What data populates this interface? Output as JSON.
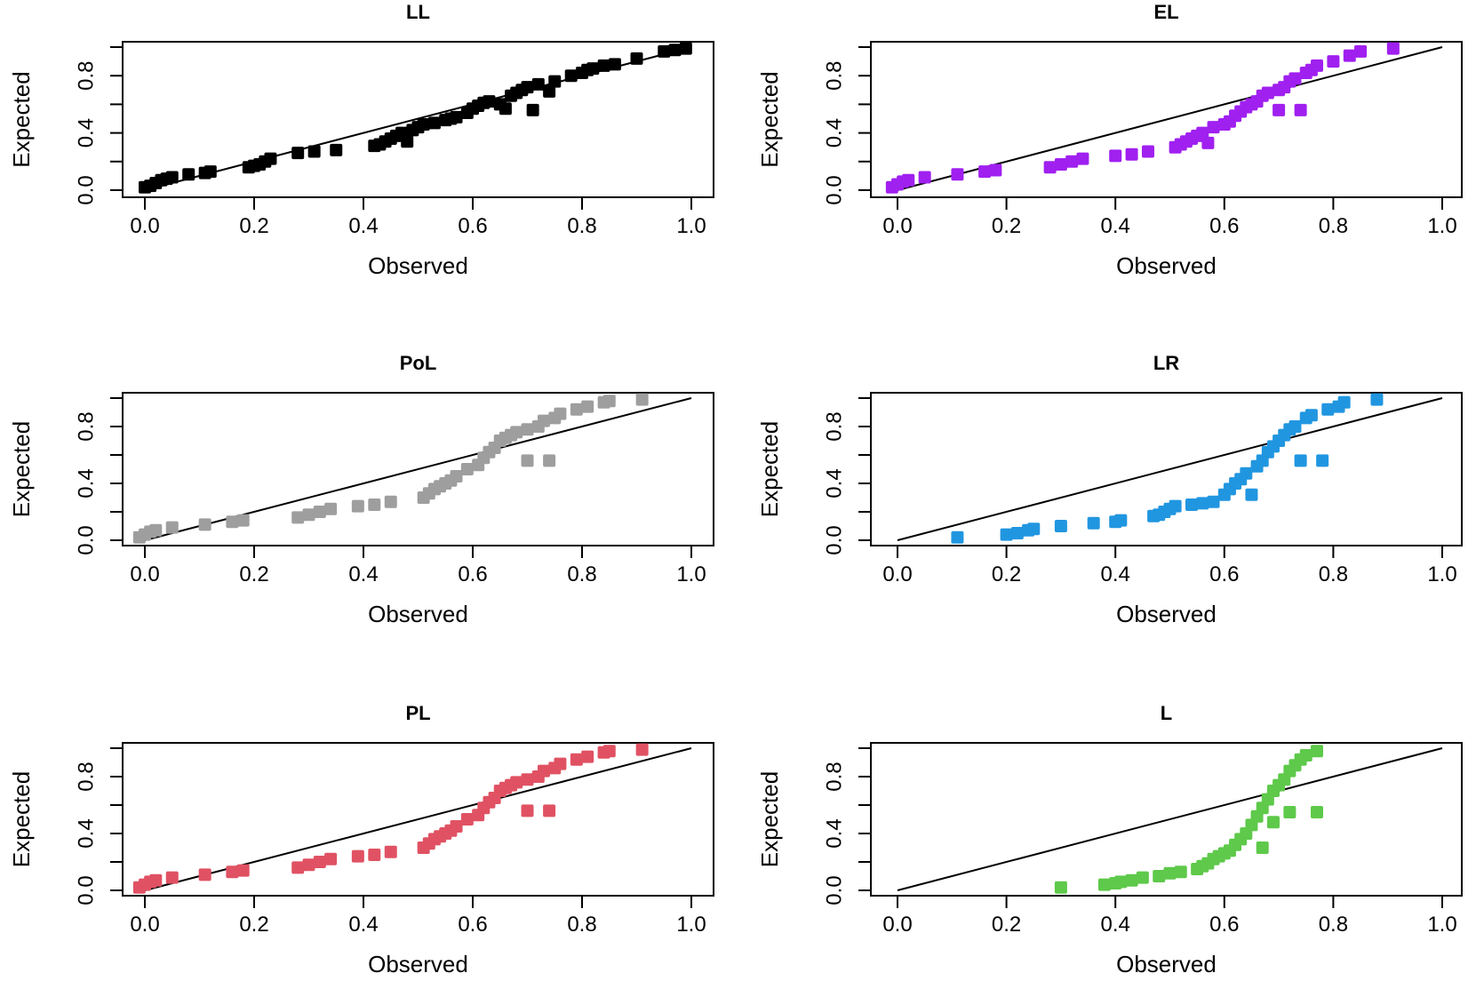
{
  "chart_data": [
    {
      "type": "scatter",
      "title": "LL",
      "xlabel": "Observed",
      "ylabel": "Expected",
      "xlim": [
        0,
        1
      ],
      "ylim": [
        0,
        1
      ],
      "xticks": [
        "0.0",
        "0.2",
        "0.4",
        "0.6",
        "0.8",
        "1.0"
      ],
      "yticks": [
        "0.0",
        "0.4",
        "0.8"
      ],
      "color": "#000000",
      "reference_line": [
        [
          0,
          0
        ],
        [
          1,
          1
        ]
      ],
      "points": [
        [
          0.0,
          0.02
        ],
        [
          0.01,
          0.03
        ],
        [
          0.02,
          0.05
        ],
        [
          0.03,
          0.07
        ],
        [
          0.04,
          0.08
        ],
        [
          0.05,
          0.09
        ],
        [
          0.08,
          0.11
        ],
        [
          0.11,
          0.12
        ],
        [
          0.12,
          0.13
        ],
        [
          0.19,
          0.16
        ],
        [
          0.2,
          0.17
        ],
        [
          0.21,
          0.18
        ],
        [
          0.22,
          0.2
        ],
        [
          0.23,
          0.22
        ],
        [
          0.28,
          0.26
        ],
        [
          0.31,
          0.27
        ],
        [
          0.35,
          0.28
        ],
        [
          0.42,
          0.31
        ],
        [
          0.43,
          0.32
        ],
        [
          0.44,
          0.34
        ],
        [
          0.45,
          0.36
        ],
        [
          0.46,
          0.38
        ],
        [
          0.47,
          0.4
        ],
        [
          0.48,
          0.34
        ],
        [
          0.49,
          0.42
        ],
        [
          0.5,
          0.44
        ],
        [
          0.51,
          0.46
        ],
        [
          0.53,
          0.47
        ],
        [
          0.55,
          0.49
        ],
        [
          0.56,
          0.5
        ],
        [
          0.57,
          0.51
        ],
        [
          0.59,
          0.54
        ],
        [
          0.6,
          0.57
        ],
        [
          0.61,
          0.59
        ],
        [
          0.62,
          0.61
        ],
        [
          0.63,
          0.62
        ],
        [
          0.65,
          0.6
        ],
        [
          0.66,
          0.57
        ],
        [
          0.67,
          0.66
        ],
        [
          0.68,
          0.68
        ],
        [
          0.69,
          0.7
        ],
        [
          0.7,
          0.72
        ],
        [
          0.71,
          0.56
        ],
        [
          0.72,
          0.74
        ],
        [
          0.74,
          0.69
        ],
        [
          0.75,
          0.76
        ],
        [
          0.78,
          0.8
        ],
        [
          0.8,
          0.82
        ],
        [
          0.81,
          0.84
        ],
        [
          0.82,
          0.85
        ],
        [
          0.84,
          0.87
        ],
        [
          0.86,
          0.88
        ],
        [
          0.9,
          0.92
        ],
        [
          0.95,
          0.97
        ],
        [
          0.97,
          0.98
        ],
        [
          0.99,
          0.99
        ]
      ]
    },
    {
      "type": "scatter",
      "title": "EL",
      "xlabel": "Observed",
      "ylabel": "Expected",
      "xlim": [
        0,
        1
      ],
      "ylim": [
        0,
        1
      ],
      "xticks": [
        "0.0",
        "0.2",
        "0.4",
        "0.6",
        "0.8",
        "1.0"
      ],
      "yticks": [
        "0.0",
        "0.4",
        "0.8"
      ],
      "color": "#a020f0",
      "reference_line": [
        [
          0,
          0
        ],
        [
          1,
          1
        ]
      ],
      "points": [
        [
          -0.01,
          0.02
        ],
        [
          0.0,
          0.04
        ],
        [
          0.01,
          0.06
        ],
        [
          0.02,
          0.07
        ],
        [
          0.05,
          0.09
        ],
        [
          0.11,
          0.11
        ],
        [
          0.16,
          0.13
        ],
        [
          0.18,
          0.14
        ],
        [
          0.28,
          0.16
        ],
        [
          0.3,
          0.18
        ],
        [
          0.32,
          0.2
        ],
        [
          0.34,
          0.22
        ],
        [
          0.4,
          0.24
        ],
        [
          0.43,
          0.25
        ],
        [
          0.46,
          0.27
        ],
        [
          0.51,
          0.3
        ],
        [
          0.52,
          0.32
        ],
        [
          0.53,
          0.34
        ],
        [
          0.54,
          0.36
        ],
        [
          0.55,
          0.38
        ],
        [
          0.56,
          0.4
        ],
        [
          0.57,
          0.33
        ],
        [
          0.58,
          0.44
        ],
        [
          0.6,
          0.46
        ],
        [
          0.61,
          0.48
        ],
        [
          0.62,
          0.52
        ],
        [
          0.63,
          0.55
        ],
        [
          0.64,
          0.58
        ],
        [
          0.65,
          0.6
        ],
        [
          0.66,
          0.62
        ],
        [
          0.67,
          0.66
        ],
        [
          0.68,
          0.68
        ],
        [
          0.7,
          0.56
        ],
        [
          0.7,
          0.7
        ],
        [
          0.71,
          0.72
        ],
        [
          0.72,
          0.76
        ],
        [
          0.73,
          0.78
        ],
        [
          0.74,
          0.56
        ],
        [
          0.75,
          0.82
        ],
        [
          0.76,
          0.84
        ],
        [
          0.77,
          0.87
        ],
        [
          0.8,
          0.9
        ],
        [
          0.83,
          0.94
        ],
        [
          0.85,
          0.97
        ],
        [
          0.91,
          0.99
        ]
      ]
    },
    {
      "type": "scatter",
      "title": "PoL",
      "xlabel": "Observed",
      "ylabel": "Expected",
      "xlim": [
        0,
        1
      ],
      "ylim": [
        0,
        1
      ],
      "xticks": [
        "0.0",
        "0.2",
        "0.4",
        "0.6",
        "0.8",
        "1.0"
      ],
      "yticks": [
        "0.0",
        "0.4",
        "0.8"
      ],
      "color": "#9e9e9e",
      "reference_line": [
        [
          0,
          0
        ],
        [
          1,
          1
        ]
      ],
      "points": [
        [
          -0.01,
          0.02
        ],
        [
          0.0,
          0.04
        ],
        [
          0.01,
          0.06
        ],
        [
          0.02,
          0.07
        ],
        [
          0.05,
          0.09
        ],
        [
          0.11,
          0.11
        ],
        [
          0.16,
          0.13
        ],
        [
          0.18,
          0.14
        ],
        [
          0.28,
          0.16
        ],
        [
          0.3,
          0.18
        ],
        [
          0.32,
          0.2
        ],
        [
          0.34,
          0.22
        ],
        [
          0.39,
          0.24
        ],
        [
          0.42,
          0.25
        ],
        [
          0.45,
          0.27
        ],
        [
          0.51,
          0.3
        ],
        [
          0.52,
          0.33
        ],
        [
          0.53,
          0.36
        ],
        [
          0.54,
          0.38
        ],
        [
          0.55,
          0.4
        ],
        [
          0.56,
          0.42
        ],
        [
          0.57,
          0.45
        ],
        [
          0.59,
          0.5
        ],
        [
          0.61,
          0.53
        ],
        [
          0.62,
          0.58
        ],
        [
          0.63,
          0.62
        ],
        [
          0.64,
          0.65
        ],
        [
          0.65,
          0.7
        ],
        [
          0.66,
          0.72
        ],
        [
          0.67,
          0.74
        ],
        [
          0.68,
          0.76
        ],
        [
          0.7,
          0.56
        ],
        [
          0.7,
          0.78
        ],
        [
          0.72,
          0.8
        ],
        [
          0.73,
          0.84
        ],
        [
          0.74,
          0.56
        ],
        [
          0.75,
          0.86
        ],
        [
          0.76,
          0.89
        ],
        [
          0.79,
          0.92
        ],
        [
          0.81,
          0.94
        ],
        [
          0.84,
          0.97
        ],
        [
          0.85,
          0.98
        ],
        [
          0.91,
          0.99
        ]
      ]
    },
    {
      "type": "scatter",
      "title": "LR",
      "xlabel": "Observed",
      "ylabel": "Expected",
      "xlim": [
        0,
        1
      ],
      "ylim": [
        0,
        1
      ],
      "xticks": [
        "0.0",
        "0.2",
        "0.4",
        "0.6",
        "0.8",
        "1.0"
      ],
      "yticks": [
        "0.0",
        "0.4",
        "0.8"
      ],
      "color": "#2196e0",
      "reference_line": [
        [
          0,
          0
        ],
        [
          1,
          1
        ]
      ],
      "points": [
        [
          0.11,
          0.02
        ],
        [
          0.2,
          0.04
        ],
        [
          0.22,
          0.05
        ],
        [
          0.24,
          0.07
        ],
        [
          0.25,
          0.08
        ],
        [
          0.3,
          0.1
        ],
        [
          0.36,
          0.12
        ],
        [
          0.4,
          0.13
        ],
        [
          0.41,
          0.14
        ],
        [
          0.47,
          0.17
        ],
        [
          0.48,
          0.18
        ],
        [
          0.49,
          0.2
        ],
        [
          0.5,
          0.22
        ],
        [
          0.51,
          0.24
        ],
        [
          0.54,
          0.25
        ],
        [
          0.56,
          0.26
        ],
        [
          0.58,
          0.27
        ],
        [
          0.6,
          0.32
        ],
        [
          0.61,
          0.36
        ],
        [
          0.62,
          0.4
        ],
        [
          0.63,
          0.43
        ],
        [
          0.64,
          0.47
        ],
        [
          0.65,
          0.32
        ],
        [
          0.66,
          0.52
        ],
        [
          0.67,
          0.56
        ],
        [
          0.68,
          0.62
        ],
        [
          0.69,
          0.66
        ],
        [
          0.7,
          0.7
        ],
        [
          0.71,
          0.74
        ],
        [
          0.72,
          0.78
        ],
        [
          0.73,
          0.8
        ],
        [
          0.74,
          0.56
        ],
        [
          0.75,
          0.86
        ],
        [
          0.76,
          0.88
        ],
        [
          0.78,
          0.56
        ],
        [
          0.79,
          0.92
        ],
        [
          0.81,
          0.94
        ],
        [
          0.82,
          0.97
        ],
        [
          0.88,
          0.99
        ]
      ]
    },
    {
      "type": "scatter",
      "title": "PL",
      "xlabel": "Observed",
      "ylabel": "Expected",
      "xlim": [
        0,
        1
      ],
      "ylim": [
        0,
        1
      ],
      "xticks": [
        "0.0",
        "0.2",
        "0.4",
        "0.6",
        "0.8",
        "1.0"
      ],
      "yticks": [
        "0.0",
        "0.4",
        "0.8"
      ],
      "color": "#e05263",
      "reference_line": [
        [
          0,
          0
        ],
        [
          1,
          1
        ]
      ],
      "points": [
        [
          -0.01,
          0.02
        ],
        [
          0.0,
          0.04
        ],
        [
          0.01,
          0.06
        ],
        [
          0.02,
          0.07
        ],
        [
          0.05,
          0.09
        ],
        [
          0.11,
          0.11
        ],
        [
          0.16,
          0.13
        ],
        [
          0.18,
          0.14
        ],
        [
          0.28,
          0.16
        ],
        [
          0.3,
          0.18
        ],
        [
          0.32,
          0.2
        ],
        [
          0.34,
          0.22
        ],
        [
          0.39,
          0.24
        ],
        [
          0.42,
          0.25
        ],
        [
          0.45,
          0.27
        ],
        [
          0.51,
          0.3
        ],
        [
          0.52,
          0.33
        ],
        [
          0.53,
          0.36
        ],
        [
          0.54,
          0.38
        ],
        [
          0.55,
          0.4
        ],
        [
          0.56,
          0.42
        ],
        [
          0.57,
          0.45
        ],
        [
          0.59,
          0.5
        ],
        [
          0.61,
          0.53
        ],
        [
          0.62,
          0.58
        ],
        [
          0.63,
          0.62
        ],
        [
          0.64,
          0.65
        ],
        [
          0.65,
          0.7
        ],
        [
          0.66,
          0.72
        ],
        [
          0.67,
          0.74
        ],
        [
          0.68,
          0.76
        ],
        [
          0.7,
          0.56
        ],
        [
          0.7,
          0.78
        ],
        [
          0.72,
          0.8
        ],
        [
          0.73,
          0.84
        ],
        [
          0.74,
          0.56
        ],
        [
          0.75,
          0.86
        ],
        [
          0.76,
          0.89
        ],
        [
          0.79,
          0.92
        ],
        [
          0.81,
          0.94
        ],
        [
          0.84,
          0.97
        ],
        [
          0.85,
          0.98
        ],
        [
          0.91,
          0.99
        ]
      ]
    },
    {
      "type": "scatter",
      "title": "L",
      "xlabel": "Observed",
      "ylabel": "Expected",
      "xlim": [
        0,
        1
      ],
      "ylim": [
        0,
        1
      ],
      "xticks": [
        "0.0",
        "0.2",
        "0.4",
        "0.6",
        "0.8",
        "1.0"
      ],
      "yticks": [
        "0.0",
        "0.4",
        "0.8"
      ],
      "color": "#5ec94a",
      "reference_line": [
        [
          0,
          0
        ],
        [
          1,
          1
        ]
      ],
      "points": [
        [
          0.3,
          0.02
        ],
        [
          0.38,
          0.04
        ],
        [
          0.4,
          0.05
        ],
        [
          0.41,
          0.06
        ],
        [
          0.43,
          0.07
        ],
        [
          0.45,
          0.09
        ],
        [
          0.48,
          0.1
        ],
        [
          0.5,
          0.12
        ],
        [
          0.52,
          0.13
        ],
        [
          0.55,
          0.15
        ],
        [
          0.56,
          0.17
        ],
        [
          0.57,
          0.19
        ],
        [
          0.58,
          0.22
        ],
        [
          0.59,
          0.24
        ],
        [
          0.6,
          0.26
        ],
        [
          0.61,
          0.28
        ],
        [
          0.62,
          0.32
        ],
        [
          0.63,
          0.36
        ],
        [
          0.64,
          0.4
        ],
        [
          0.65,
          0.46
        ],
        [
          0.66,
          0.52
        ],
        [
          0.67,
          0.3
        ],
        [
          0.67,
          0.58
        ],
        [
          0.68,
          0.64
        ],
        [
          0.69,
          0.48
        ],
        [
          0.69,
          0.7
        ],
        [
          0.7,
          0.74
        ],
        [
          0.71,
          0.78
        ],
        [
          0.72,
          0.84
        ],
        [
          0.72,
          0.55
        ],
        [
          0.73,
          0.88
        ],
        [
          0.74,
          0.92
        ],
        [
          0.75,
          0.95
        ],
        [
          0.77,
          0.98
        ],
        [
          0.77,
          0.55
        ]
      ]
    }
  ]
}
